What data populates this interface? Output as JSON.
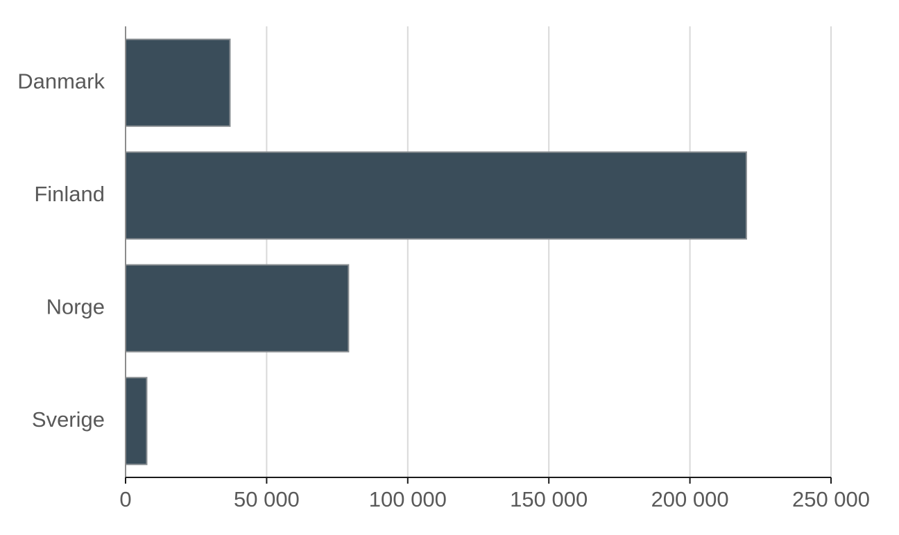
{
  "chart_data": {
    "type": "bar",
    "orientation": "horizontal",
    "categories": [
      "Danmark",
      "Finland",
      "Norge",
      "Sverige"
    ],
    "values": [
      37000,
      220000,
      79000,
      7500
    ],
    "xlim": [
      0,
      250000
    ],
    "xticks": [
      0,
      50000,
      100000,
      150000,
      200000,
      250000
    ],
    "xtick_labels": [
      "0",
      "50 000",
      "100 000",
      "150 000",
      "200 000",
      "250 000"
    ],
    "title": "",
    "xlabel": "",
    "ylabel": "",
    "grid": "vertical",
    "legend": "none",
    "bar_color": "#3a4d5a",
    "bar_border_color": "#8a8f93",
    "grid_color": "#d9d9d9",
    "label_color": "#595959"
  }
}
